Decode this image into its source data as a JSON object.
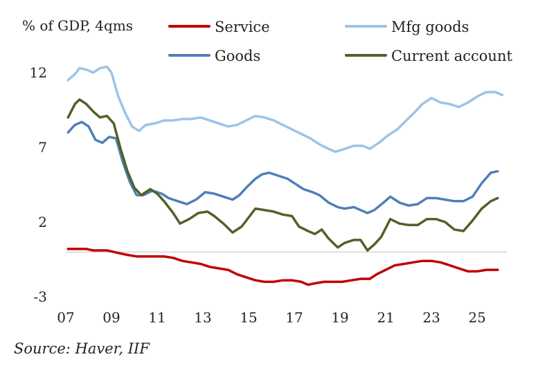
{
  "source": "Source: Haver, IIF",
  "chart_data": {
    "type": "line",
    "unit_label": "% of GDP, 4qms",
    "xlabel": "",
    "ylabel": "",
    "x_ticks": [
      "07",
      "09",
      "11",
      "13",
      "15",
      "17",
      "19",
      "21",
      "23",
      "25"
    ],
    "x_tick_years": [
      2007,
      2009,
      2011,
      2013,
      2015,
      2017,
      2019,
      2021,
      2023,
      2025
    ],
    "xlim": [
      2007,
      2026.3
    ],
    "y_ticks": [
      12,
      7,
      2,
      -3
    ],
    "ylim": [
      -3,
      12
    ],
    "zero_line": 0,
    "grid": false,
    "legend_position": "top",
    "series": [
      {
        "name": "Service",
        "color": "#c00000",
        "points": [
          [
            2007.1,
            0.2
          ],
          [
            2007.4,
            0.2
          ],
          [
            2007.6,
            0.2
          ],
          [
            2007.9,
            0.2
          ],
          [
            2008.2,
            0.1
          ],
          [
            2008.5,
            0.1
          ],
          [
            2008.8,
            0.1
          ],
          [
            2009.1,
            0.0
          ],
          [
            2009.4,
            -0.1
          ],
          [
            2009.7,
            -0.2
          ],
          [
            2010.1,
            -0.3
          ],
          [
            2010.5,
            -0.3
          ],
          [
            2010.9,
            -0.3
          ],
          [
            2011.3,
            -0.3
          ],
          [
            2011.7,
            -0.4
          ],
          [
            2012.1,
            -0.6
          ],
          [
            2012.5,
            -0.7
          ],
          [
            2012.9,
            -0.8
          ],
          [
            2013.3,
            -1.0
          ],
          [
            2013.7,
            -1.1
          ],
          [
            2014.1,
            -1.2
          ],
          [
            2014.5,
            -1.5
          ],
          [
            2014.9,
            -1.7
          ],
          [
            2015.3,
            -1.9
          ],
          [
            2015.7,
            -2.0
          ],
          [
            2016.1,
            -2.0
          ],
          [
            2016.5,
            -1.9
          ],
          [
            2016.9,
            -1.9
          ],
          [
            2017.3,
            -2.0
          ],
          [
            2017.6,
            -2.2
          ],
          [
            2017.9,
            -2.1
          ],
          [
            2018.3,
            -2.0
          ],
          [
            2018.7,
            -2.0
          ],
          [
            2019.1,
            -2.0
          ],
          [
            2019.5,
            -1.9
          ],
          [
            2019.9,
            -1.8
          ],
          [
            2020.3,
            -1.8
          ],
          [
            2020.6,
            -1.5
          ],
          [
            2021.0,
            -1.2
          ],
          [
            2021.4,
            -0.9
          ],
          [
            2021.8,
            -0.8
          ],
          [
            2022.2,
            -0.7
          ],
          [
            2022.6,
            -0.6
          ],
          [
            2023.0,
            -0.6
          ],
          [
            2023.4,
            -0.7
          ],
          [
            2023.8,
            -0.9
          ],
          [
            2024.2,
            -1.1
          ],
          [
            2024.6,
            -1.3
          ],
          [
            2025.0,
            -1.3
          ],
          [
            2025.4,
            -1.2
          ],
          [
            2025.9,
            -1.2
          ]
        ]
      },
      {
        "name": "Mfg goods",
        "color": "#9dc3e6",
        "points": [
          [
            2007.1,
            11.5
          ],
          [
            2007.4,
            11.9
          ],
          [
            2007.6,
            12.3
          ],
          [
            2007.9,
            12.2
          ],
          [
            2008.2,
            12.0
          ],
          [
            2008.5,
            12.3
          ],
          [
            2008.8,
            12.4
          ],
          [
            2009.0,
            12.0
          ],
          [
            2009.3,
            10.4
          ],
          [
            2009.6,
            9.3
          ],
          [
            2009.9,
            8.4
          ],
          [
            2010.2,
            8.1
          ],
          [
            2010.5,
            8.5
          ],
          [
            2010.9,
            8.6
          ],
          [
            2011.3,
            8.8
          ],
          [
            2011.7,
            8.8
          ],
          [
            2012.1,
            8.9
          ],
          [
            2012.5,
            8.9
          ],
          [
            2012.9,
            9.0
          ],
          [
            2013.3,
            8.8
          ],
          [
            2013.7,
            8.6
          ],
          [
            2014.1,
            8.4
          ],
          [
            2014.5,
            8.5
          ],
          [
            2014.9,
            8.8
          ],
          [
            2015.3,
            9.1
          ],
          [
            2015.7,
            9.0
          ],
          [
            2016.1,
            8.8
          ],
          [
            2016.5,
            8.5
          ],
          [
            2016.9,
            8.2
          ],
          [
            2017.3,
            7.9
          ],
          [
            2017.7,
            7.6
          ],
          [
            2018.1,
            7.2
          ],
          [
            2018.5,
            6.9
          ],
          [
            2018.8,
            6.7
          ],
          [
            2019.2,
            6.9
          ],
          [
            2019.6,
            7.1
          ],
          [
            2020.0,
            7.1
          ],
          [
            2020.3,
            6.9
          ],
          [
            2020.7,
            7.3
          ],
          [
            2021.1,
            7.8
          ],
          [
            2021.5,
            8.2
          ],
          [
            2021.9,
            8.8
          ],
          [
            2022.3,
            9.4
          ],
          [
            2022.6,
            9.9
          ],
          [
            2023.0,
            10.3
          ],
          [
            2023.4,
            10.0
          ],
          [
            2023.8,
            9.9
          ],
          [
            2024.2,
            9.7
          ],
          [
            2024.6,
            10.0
          ],
          [
            2025.0,
            10.4
          ],
          [
            2025.4,
            10.7
          ],
          [
            2025.8,
            10.7
          ],
          [
            2026.1,
            10.5
          ]
        ]
      },
      {
        "name": "Goods",
        "color": "#4e7fba",
        "points": [
          [
            2007.1,
            8.0
          ],
          [
            2007.4,
            8.5
          ],
          [
            2007.7,
            8.7
          ],
          [
            2008.0,
            8.4
          ],
          [
            2008.3,
            7.5
          ],
          [
            2008.6,
            7.3
          ],
          [
            2008.9,
            7.7
          ],
          [
            2009.2,
            7.6
          ],
          [
            2009.5,
            6.0
          ],
          [
            2009.8,
            4.7
          ],
          [
            2010.1,
            3.8
          ],
          [
            2010.4,
            3.8
          ],
          [
            2010.8,
            4.1
          ],
          [
            2011.2,
            3.9
          ],
          [
            2011.5,
            3.6
          ],
          [
            2011.9,
            3.4
          ],
          [
            2012.3,
            3.2
          ],
          [
            2012.7,
            3.5
          ],
          [
            2013.1,
            4.0
          ],
          [
            2013.5,
            3.9
          ],
          [
            2013.9,
            3.7
          ],
          [
            2014.3,
            3.5
          ],
          [
            2014.6,
            3.8
          ],
          [
            2014.9,
            4.3
          ],
          [
            2015.3,
            4.9
          ],
          [
            2015.6,
            5.2
          ],
          [
            2015.9,
            5.3
          ],
          [
            2016.3,
            5.1
          ],
          [
            2016.7,
            4.9
          ],
          [
            2017.0,
            4.6
          ],
          [
            2017.4,
            4.2
          ],
          [
            2017.8,
            4.0
          ],
          [
            2018.1,
            3.8
          ],
          [
            2018.5,
            3.3
          ],
          [
            2018.9,
            3.0
          ],
          [
            2019.2,
            2.9
          ],
          [
            2019.6,
            3.0
          ],
          [
            2019.9,
            2.8
          ],
          [
            2020.2,
            2.6
          ],
          [
            2020.5,
            2.8
          ],
          [
            2020.9,
            3.3
          ],
          [
            2021.2,
            3.7
          ],
          [
            2021.6,
            3.3
          ],
          [
            2022.0,
            3.1
          ],
          [
            2022.4,
            3.2
          ],
          [
            2022.8,
            3.6
          ],
          [
            2023.2,
            3.6
          ],
          [
            2023.6,
            3.5
          ],
          [
            2024.0,
            3.4
          ],
          [
            2024.4,
            3.4
          ],
          [
            2024.8,
            3.7
          ],
          [
            2025.2,
            4.6
          ],
          [
            2025.6,
            5.3
          ],
          [
            2025.9,
            5.4
          ]
        ]
      },
      {
        "name": "Current account",
        "color": "#4f6228",
        "points": [
          [
            2007.1,
            9.0
          ],
          [
            2007.4,
            9.9
          ],
          [
            2007.6,
            10.2
          ],
          [
            2007.9,
            9.9
          ],
          [
            2008.2,
            9.4
          ],
          [
            2008.5,
            9.0
          ],
          [
            2008.8,
            9.1
          ],
          [
            2009.1,
            8.6
          ],
          [
            2009.4,
            6.9
          ],
          [
            2009.7,
            5.4
          ],
          [
            2010.0,
            4.3
          ],
          [
            2010.3,
            3.8
          ],
          [
            2010.7,
            4.2
          ],
          [
            2011.0,
            3.9
          ],
          [
            2011.3,
            3.4
          ],
          [
            2011.7,
            2.6
          ],
          [
            2012.0,
            1.9
          ],
          [
            2012.4,
            2.2
          ],
          [
            2012.8,
            2.6
          ],
          [
            2013.2,
            2.7
          ],
          [
            2013.5,
            2.4
          ],
          [
            2013.9,
            1.9
          ],
          [
            2014.3,
            1.3
          ],
          [
            2014.7,
            1.7
          ],
          [
            2015.0,
            2.3
          ],
          [
            2015.3,
            2.9
          ],
          [
            2015.7,
            2.8
          ],
          [
            2016.1,
            2.7
          ],
          [
            2016.5,
            2.5
          ],
          [
            2016.9,
            2.4
          ],
          [
            2017.2,
            1.7
          ],
          [
            2017.6,
            1.4
          ],
          [
            2017.9,
            1.2
          ],
          [
            2018.2,
            1.5
          ],
          [
            2018.5,
            0.9
          ],
          [
            2018.9,
            0.3
          ],
          [
            2019.2,
            0.6
          ],
          [
            2019.6,
            0.8
          ],
          [
            2019.9,
            0.8
          ],
          [
            2020.2,
            0.1
          ],
          [
            2020.5,
            0.5
          ],
          [
            2020.8,
            1.0
          ],
          [
            2021.2,
            2.2
          ],
          [
            2021.6,
            1.9
          ],
          [
            2022.0,
            1.8
          ],
          [
            2022.4,
            1.8
          ],
          [
            2022.8,
            2.2
          ],
          [
            2023.2,
            2.2
          ],
          [
            2023.6,
            2.0
          ],
          [
            2024.0,
            1.5
          ],
          [
            2024.4,
            1.4
          ],
          [
            2024.8,
            2.1
          ],
          [
            2025.2,
            2.9
          ],
          [
            2025.6,
            3.4
          ],
          [
            2025.9,
            3.6
          ]
        ]
      }
    ],
    "legend_rows": [
      [
        {
          "series": 0
        },
        {
          "series": 1
        }
      ],
      [
        {
          "series": 2
        },
        {
          "series": 3
        }
      ]
    ]
  }
}
